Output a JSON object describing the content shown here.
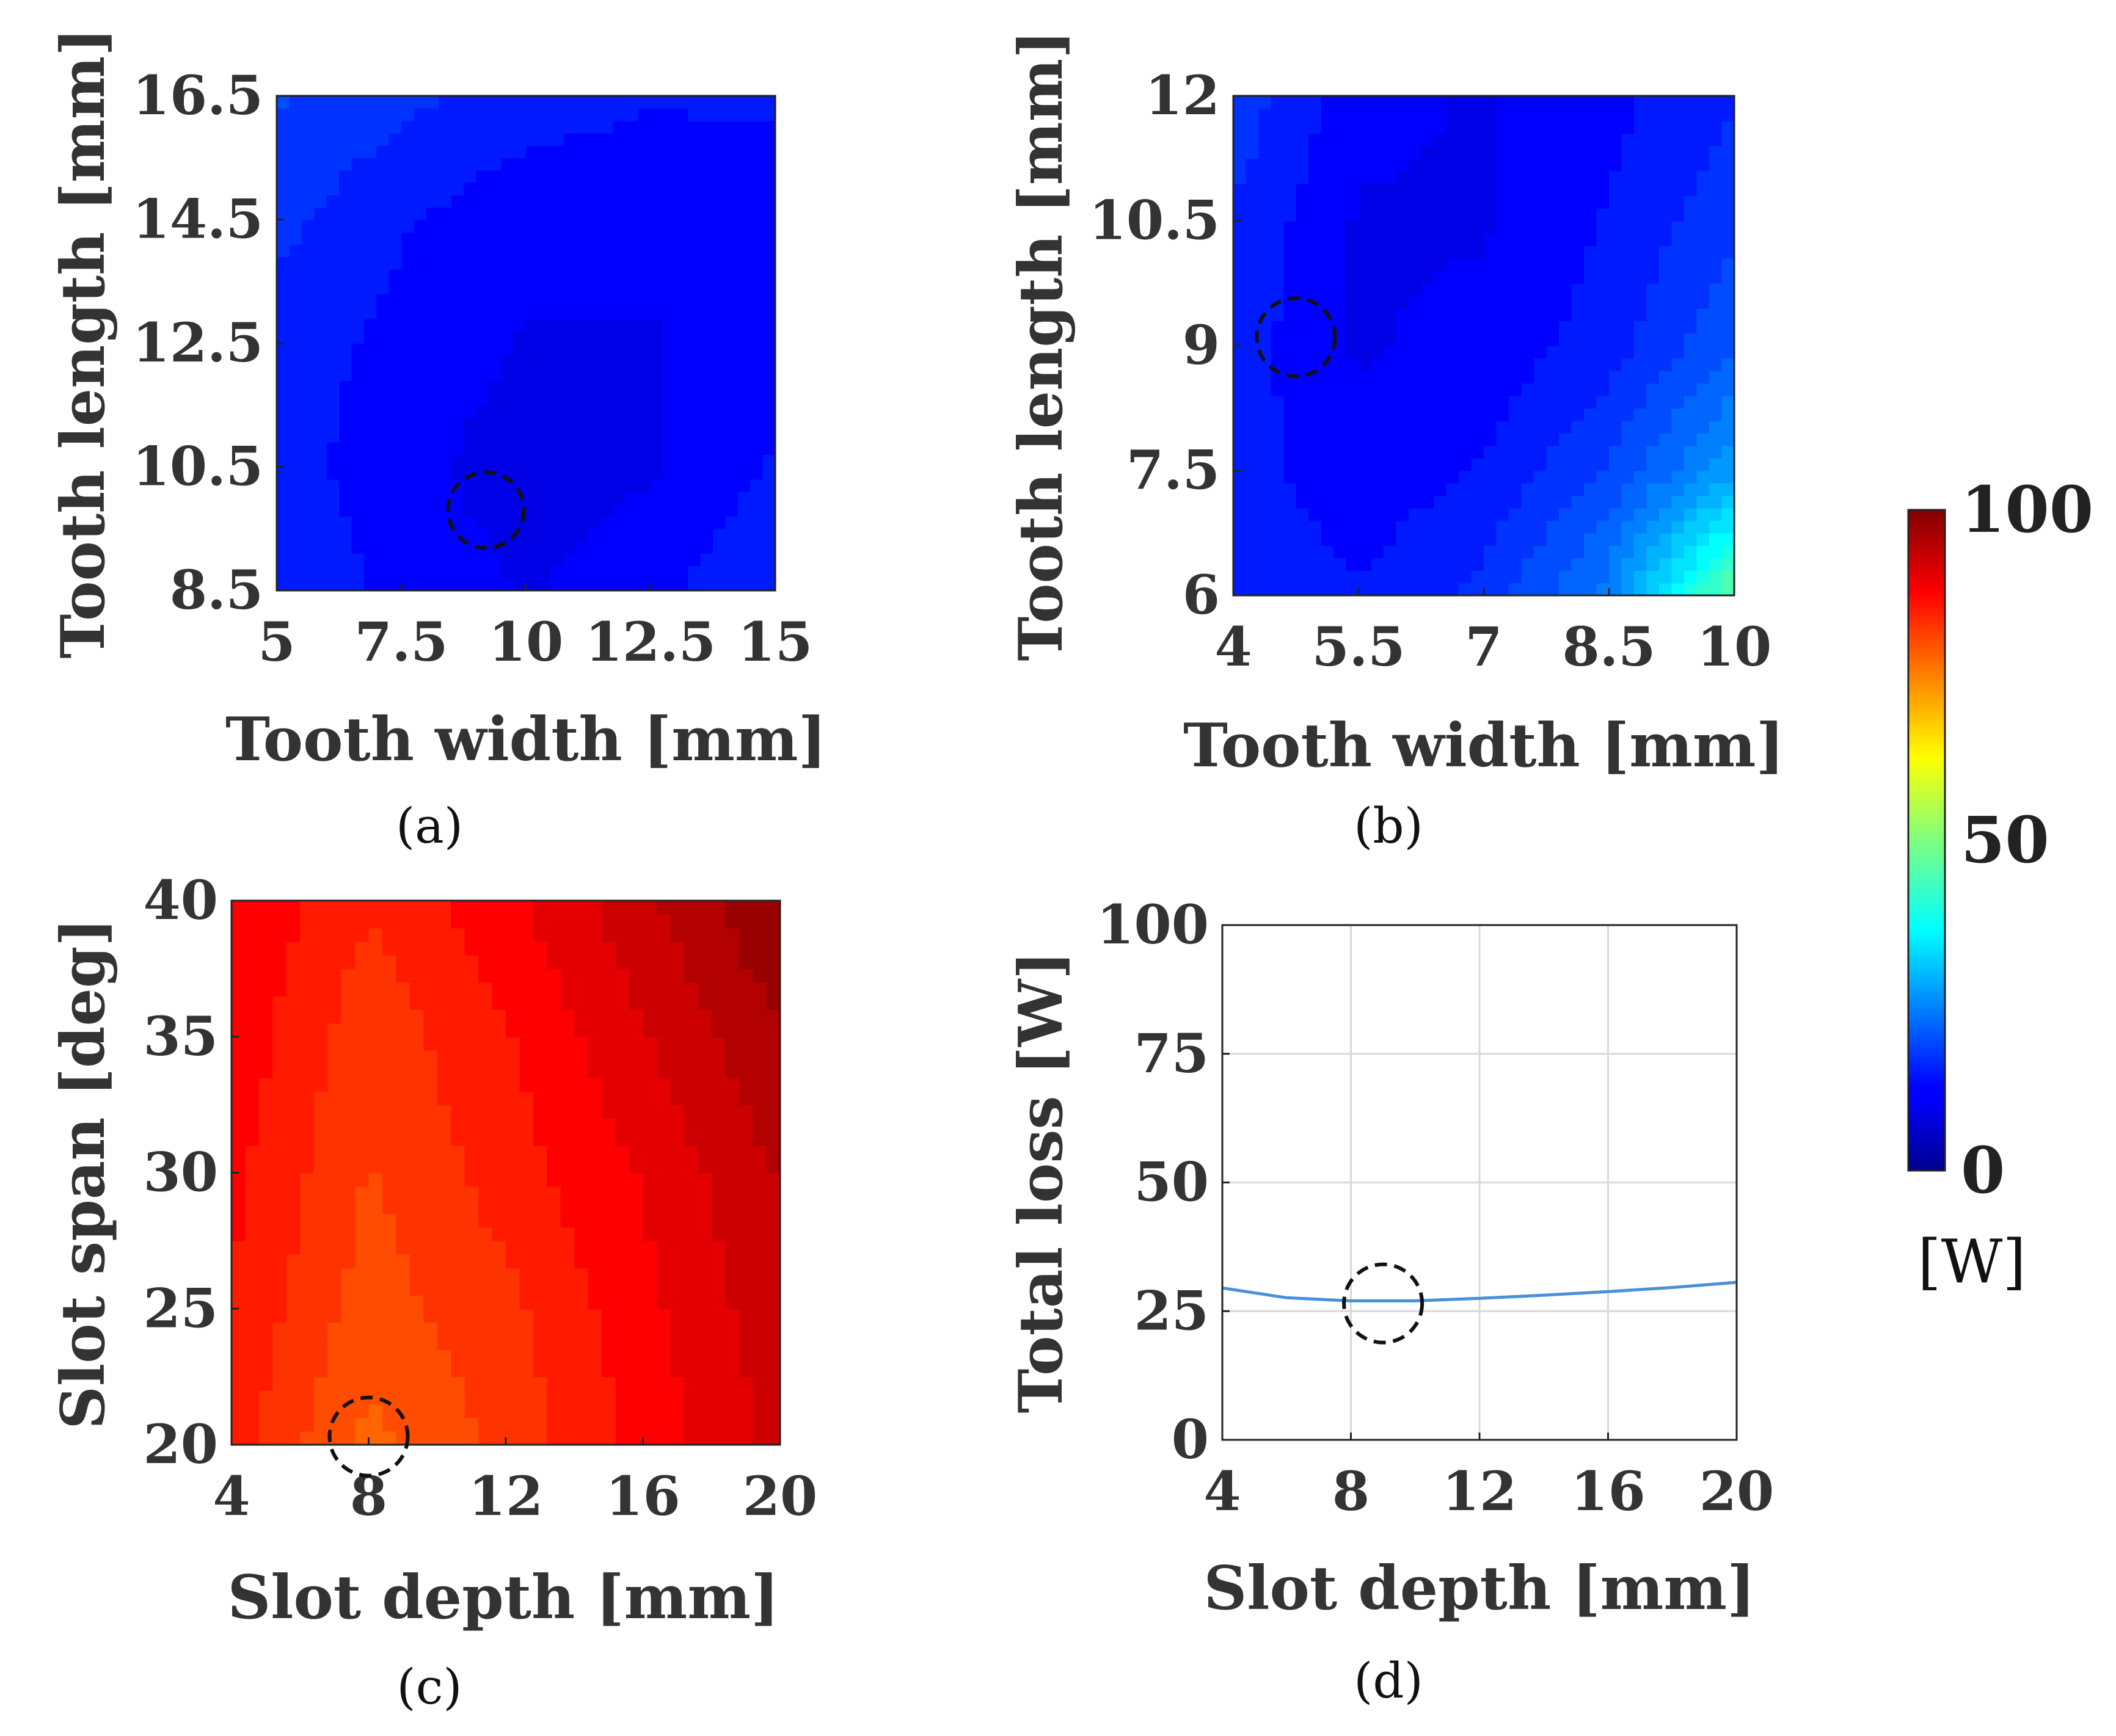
{
  "colors": {
    "frame": "#222222",
    "marker": "#111111",
    "line_series": "#4a90d9",
    "grid": "#d9d9d9"
  },
  "colormap": "jet",
  "chart_data": [
    {
      "id": "a",
      "type": "heatmap",
      "caption": "(a)",
      "xlabel": "Tooth width [mm]",
      "ylabel": "Tooth length [mm]",
      "xlim": [
        5,
        15
      ],
      "ylim": [
        8.5,
        16.5
      ],
      "xticks": [
        "5",
        "7.5",
        "10",
        "12.5",
        "15"
      ],
      "yticks": [
        "8.5",
        "10.5",
        "12.5",
        "14.5",
        "16.5"
      ],
      "value_range": [
        0,
        100
      ],
      "x": [
        5,
        7.5,
        10,
        12.5,
        15
      ],
      "y": [
        8.5,
        10.5,
        12.5,
        14.5,
        16.5
      ],
      "z": [
        [
          16,
          13,
          11,
          13,
          16
        ],
        [
          15,
          12,
          10,
          11,
          14
        ],
        [
          15,
          13,
          11,
          11,
          13
        ],
        [
          17,
          14,
          12,
          12,
          13
        ],
        [
          19,
          17,
          15,
          14,
          14
        ]
      ],
      "marker": {
        "x": 9.2,
        "y": 9.8
      }
    },
    {
      "id": "b",
      "type": "heatmap",
      "caption": "(b)",
      "xlabel": "Tooth width [mm]",
      "ylabel": "Tooth length [mm]",
      "xlim": [
        4,
        10
      ],
      "ylim": [
        6,
        12
      ],
      "xticks": [
        "4",
        "5.5",
        "7",
        "8.5",
        "10"
      ],
      "yticks": [
        "6",
        "7.5",
        "9",
        "10.5",
        "12"
      ],
      "value_range": [
        0,
        100
      ],
      "x": [
        4,
        5.5,
        7,
        8.5,
        10
      ],
      "y": [
        6,
        7.5,
        9,
        10.5,
        12
      ],
      "z": [
        [
          16,
          14,
          17,
          25,
          48
        ],
        [
          15,
          12,
          14,
          19,
          28
        ],
        [
          15,
          11,
          12,
          15,
          21
        ],
        [
          16,
          11,
          11,
          14,
          18
        ],
        [
          18,
          12,
          11,
          13,
          16
        ]
      ],
      "marker": {
        "x": 4.75,
        "y": 9.1
      }
    },
    {
      "id": "c",
      "type": "heatmap",
      "caption": "(c)",
      "xlabel": "Slot depth [mm]",
      "ylabel": "Slot span [deg]",
      "xlim": [
        4,
        20
      ],
      "ylim": [
        20,
        40
      ],
      "xticks": [
        "4",
        "8",
        "12",
        "16",
        "20"
      ],
      "yticks": [
        "20",
        "25",
        "30",
        "35",
        "40"
      ],
      "value_range": [
        0,
        100
      ],
      "x": [
        4,
        8,
        12,
        16,
        20
      ],
      "y": [
        20,
        25,
        30,
        35,
        40
      ],
      "z": [
        [
          85,
          78,
          82,
          87,
          92
        ],
        [
          86,
          80,
          83,
          88,
          93
        ],
        [
          87,
          81,
          85,
          89,
          94
        ],
        [
          88,
          82,
          86,
          91,
          96
        ],
        [
          89,
          84,
          88,
          93,
          99
        ]
      ],
      "marker": {
        "x": 8,
        "y": 20.3
      }
    },
    {
      "id": "d",
      "type": "line",
      "caption": "(d)",
      "xlabel": "Slot depth [mm]",
      "ylabel": "Total loss [W]",
      "xlim": [
        4,
        20
      ],
      "ylim": [
        0,
        100
      ],
      "xticks": [
        "4",
        "8",
        "12",
        "16",
        "20"
      ],
      "yticks": [
        "0",
        "25",
        "50",
        "75",
        "100"
      ],
      "grid": true,
      "x": [
        4,
        6,
        8,
        10,
        12,
        14,
        16,
        18,
        20
      ],
      "y": [
        29.5,
        27.6,
        27.0,
        27.0,
        27.5,
        28.1,
        28.8,
        29.6,
        30.6
      ],
      "marker": {
        "x": 9,
        "y": 26.5
      }
    }
  ],
  "colorbar": {
    "min": 0,
    "max": 100,
    "tick_labels": [
      "0",
      "50",
      "100"
    ],
    "unit": "[W]"
  }
}
